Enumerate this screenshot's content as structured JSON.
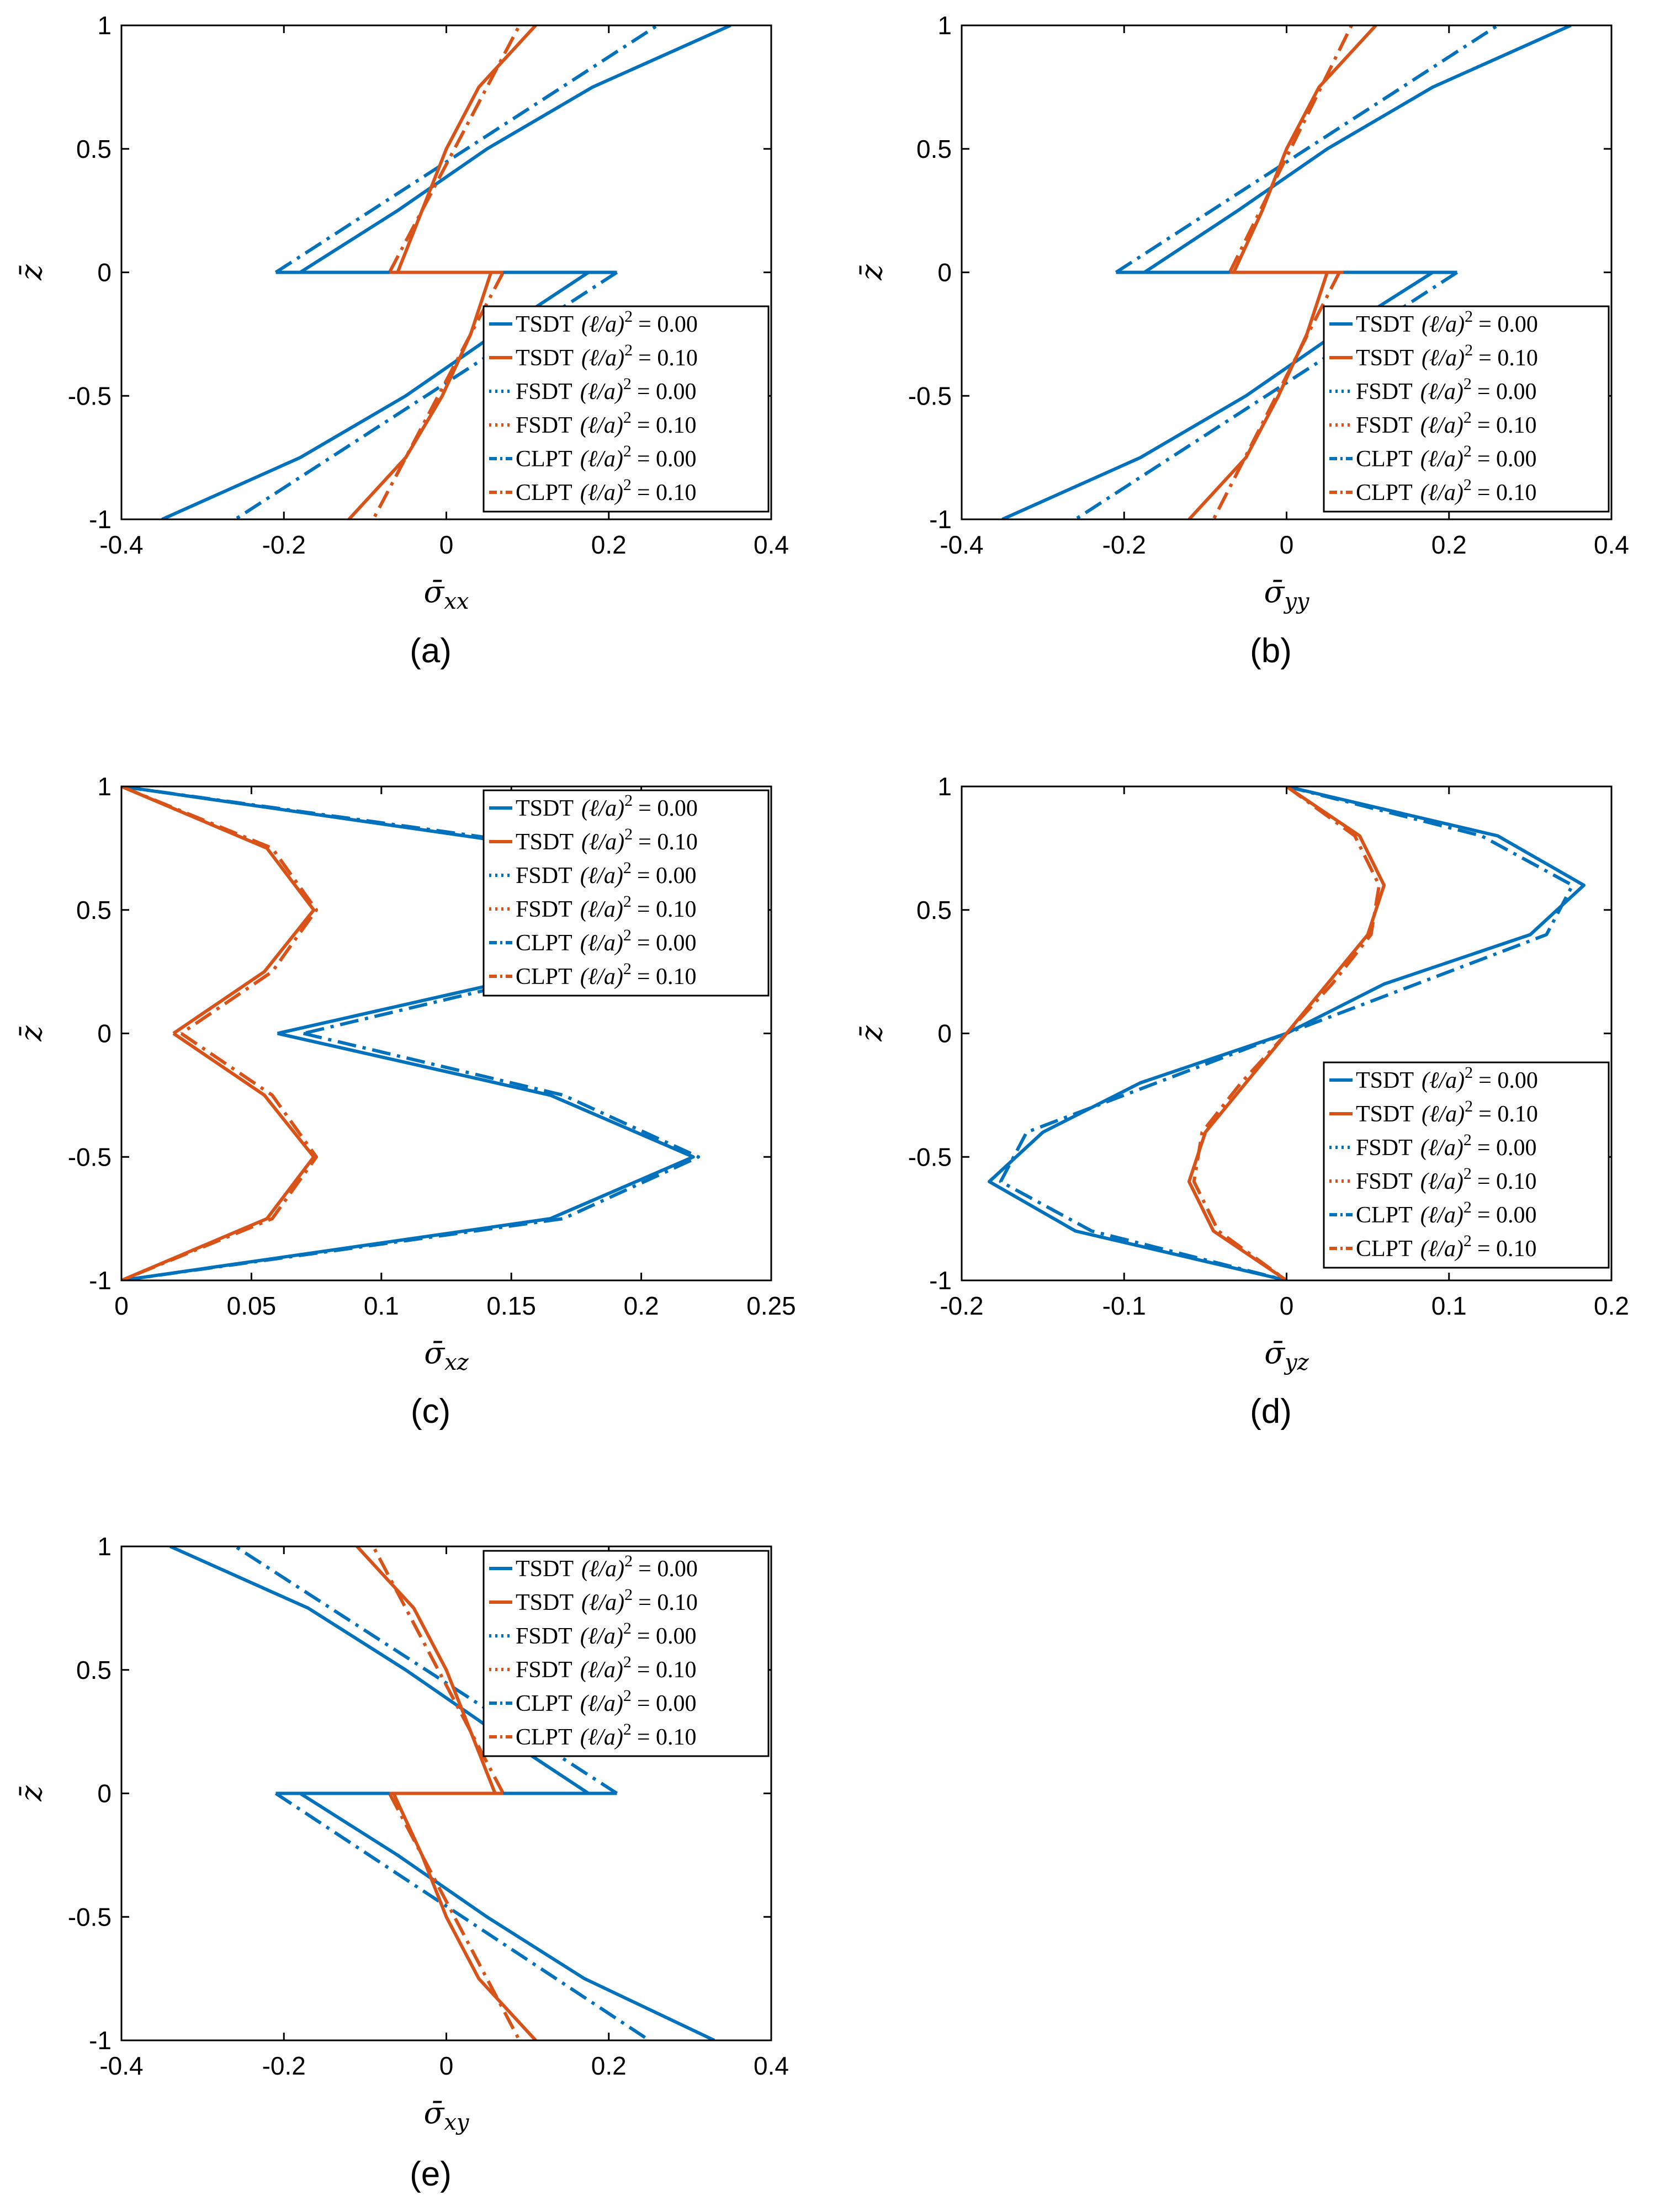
{
  "colors": {
    "blue": "#0072BD",
    "red": "#D95319",
    "axis": "#000000",
    "background": "#ffffff"
  },
  "legend_labels": [
    {
      "method": "TSDT",
      "param": "(ℓ/a)",
      "sup": "2",
      "value": "= 0.00",
      "style": "solid",
      "color": "blue"
    },
    {
      "method": "TSDT",
      "param": "(ℓ/a)",
      "sup": "2",
      "value": "= 0.10",
      "style": "solid",
      "color": "red"
    },
    {
      "method": "FSDT",
      "param": "(ℓ/a)",
      "sup": "2",
      "value": "= 0.00",
      "style": "dotted",
      "color": "blue"
    },
    {
      "method": "FSDT",
      "param": "(ℓ/a)",
      "sup": "2",
      "value": "= 0.10",
      "style": "dotted",
      "color": "red"
    },
    {
      "method": "CLPT",
      "param": "(ℓ/a)",
      "sup": "2",
      "value": "= 0.00",
      "style": "dashdot",
      "color": "blue"
    },
    {
      "method": "CLPT",
      "param": "(ℓ/a)",
      "sup": "2",
      "value": "= 0.10",
      "style": "dashdot",
      "color": "red"
    }
  ],
  "chart_data": [
    {
      "panel": "(a)",
      "type": "line",
      "xlabel": {
        "base": "σ̄",
        "sub": "xx"
      },
      "ylabel": "z̄",
      "xlim": [
        -0.4,
        0.4
      ],
      "ylim": [
        -1,
        1
      ],
      "xticks": [
        "-0.4",
        "-0.2",
        "0",
        "0.2",
        "0.4"
      ],
      "yticks": [
        "-1",
        "-0.5",
        "0",
        "0.5",
        "1"
      ],
      "legend_position": "lower-right",
      "series": [
        {
          "name": "TSDT (ℓ/a)² = 0.00",
          "style": "solid",
          "color": "blue",
          "segments": [
            {
              "z": [
                0,
                0.25,
                0.5,
                0.75,
                1.0
              ],
              "x": [
                -0.18,
                -0.06,
                0.05,
                0.18,
                0.35
              ]
            },
            {
              "z": [
                0,
                -0.25,
                -0.5,
                -0.75,
                -1.0
              ],
              "x": [
                0.175,
                0.06,
                -0.05,
                -0.18,
                -0.35
              ]
            }
          ]
        },
        {
          "name": "CLPT (ℓ/a)² = 0.00",
          "style": "dashdot",
          "color": "blue",
          "segments": [
            {
              "z": [
                0,
                1.0
              ],
              "x": [
                -0.21,
                0.26
              ]
            },
            {
              "z": [
                0,
                -1.0
              ],
              "x": [
                0.21,
                -0.26
              ]
            }
          ]
        },
        {
          "name": "TSDT (ℓ/a)² = 0.10",
          "style": "solid",
          "color": "red",
          "segments": [
            {
              "z": [
                0,
                0.25,
                0.5,
                0.75,
                1.0
              ],
              "x": [
                -0.06,
                -0.03,
                0.0,
                0.04,
                0.11
              ]
            },
            {
              "z": [
                0,
                -0.25,
                -0.5,
                -0.75,
                -1.0
              ],
              "x": [
                0.055,
                0.03,
                -0.005,
                -0.05,
                -0.12
              ]
            }
          ]
        },
        {
          "name": "CLPT (ℓ/a)² = 0.10",
          "style": "dashdot",
          "color": "red",
          "segments": [
            {
              "z": [
                0,
                1.0
              ],
              "x": [
                -0.07,
                0.09
              ]
            },
            {
              "z": [
                0,
                -1.0
              ],
              "x": [
                0.07,
                -0.09
              ]
            }
          ]
        },
        {
          "name": "jumps",
          "style": "solid",
          "color": "blue",
          "segments": [
            {
              "z": [
                0,
                0
              ],
              "x": [
                -0.21,
                0.21
              ]
            }
          ]
        },
        {
          "name": "jumps",
          "style": "solid",
          "color": "red",
          "segments": [
            {
              "z": [
                0,
                0
              ],
              "x": [
                -0.07,
                0.07
              ]
            }
          ]
        }
      ]
    },
    {
      "panel": "(b)",
      "type": "line",
      "xlabel": {
        "base": "σ̄",
        "sub": "yy"
      },
      "ylabel": "z̄",
      "xlim": [
        -0.4,
        0.4
      ],
      "ylim": [
        -1,
        1
      ],
      "xticks": [
        "-0.4",
        "-0.2",
        "0",
        "0.2",
        "0.4"
      ],
      "yticks": [
        "-1",
        "-0.5",
        "0",
        "0.5",
        "1"
      ],
      "legend_position": "lower-right",
      "series": [
        {
          "name": "TSDT (ℓ/a)² = 0.00",
          "style": "solid",
          "color": "blue",
          "segments": [
            {
              "z": [
                0,
                0.25,
                0.5,
                0.75,
                1.0
              ],
              "x": [
                -0.175,
                -0.06,
                0.05,
                0.18,
                0.35
              ]
            },
            {
              "z": [
                0,
                -0.25,
                -0.5,
                -0.75,
                -1.0
              ],
              "x": [
                0.18,
                0.06,
                -0.05,
                -0.18,
                -0.35
              ]
            }
          ]
        },
        {
          "name": "CLPT (ℓ/a)² = 0.00",
          "style": "dashdot",
          "color": "blue",
          "segments": [
            {
              "z": [
                0,
                1.0
              ],
              "x": [
                -0.21,
                0.26
              ]
            },
            {
              "z": [
                0,
                -1.0
              ],
              "x": [
                0.21,
                -0.26
              ]
            }
          ]
        },
        {
          "name": "TSDT (ℓ/a)² = 0.10",
          "style": "solid",
          "color": "red",
          "segments": [
            {
              "z": [
                0,
                0.25,
                0.5,
                0.75,
                1.0
              ],
              "x": [
                -0.065,
                -0.03,
                0.0,
                0.04,
                0.11
              ]
            },
            {
              "z": [
                0,
                -0.25,
                -0.5,
                -0.75,
                -1.0
              ],
              "x": [
                0.05,
                0.025,
                -0.01,
                -0.05,
                -0.12
              ]
            }
          ]
        },
        {
          "name": "CLPT (ℓ/a)² = 0.10",
          "style": "dashdot",
          "color": "red",
          "segments": [
            {
              "z": [
                0,
                1.0
              ],
              "x": [
                -0.07,
                0.08
              ]
            },
            {
              "z": [
                0,
                -1.0
              ],
              "x": [
                0.065,
                -0.09
              ]
            }
          ]
        },
        {
          "name": "jumps",
          "style": "solid",
          "color": "blue",
          "segments": [
            {
              "z": [
                0,
                0
              ],
              "x": [
                -0.21,
                0.21
              ]
            }
          ]
        },
        {
          "name": "jumps",
          "style": "solid",
          "color": "red",
          "segments": [
            {
              "z": [
                0,
                0
              ],
              "x": [
                -0.07,
                0.07
              ]
            }
          ]
        }
      ]
    },
    {
      "panel": "(c)",
      "type": "line",
      "xlabel": {
        "base": "σ̄",
        "sub": "xz"
      },
      "ylabel": "z̄",
      "xlim": [
        0,
        0.25
      ],
      "ylim": [
        -1,
        1
      ],
      "xticks": [
        "0",
        "0.05",
        "0.1",
        "0.15",
        "0.2",
        "0.25"
      ],
      "yticks": [
        "-1",
        "-0.5",
        "0",
        "0.5",
        "1"
      ],
      "legend_position": "top-right",
      "series": [
        {
          "name": "TSDT (ℓ/a)² = 0.00",
          "style": "solid",
          "color": "blue",
          "segments": [
            {
              "z": [
                1.0,
                0.75,
                0.5,
                0.25,
                0.0
              ],
              "x": [
                0.0,
                0.165,
                0.22,
                0.165,
                0.06
              ]
            },
            {
              "z": [
                0.0,
                -0.25,
                -0.5,
                -0.75,
                -1.0
              ],
              "x": [
                0.06,
                0.165,
                0.22,
                0.165,
                0.0
              ]
            }
          ]
        },
        {
          "name": "CLPT (ℓ/a)² = 0.00",
          "style": "dashdot",
          "color": "blue",
          "segments": [
            {
              "z": [
                1.0,
                0.75,
                0.5,
                0.25,
                0.0
              ],
              "x": [
                0.0,
                0.17,
                0.222,
                0.17,
                0.07
              ]
            },
            {
              "z": [
                0.0,
                -0.25,
                -0.5,
                -0.75,
                -1.0
              ],
              "x": [
                0.07,
                0.17,
                0.222,
                0.17,
                0.0
              ]
            }
          ]
        },
        {
          "name": "TSDT (ℓ/a)² = 0.10",
          "style": "solid",
          "color": "red",
          "segments": [
            {
              "z": [
                1.0,
                0.75,
                0.5,
                0.25,
                0.0
              ],
              "x": [
                0.0,
                0.056,
                0.074,
                0.055,
                0.02
              ]
            },
            {
              "z": [
                0.0,
                -0.25,
                -0.5,
                -0.75,
                -1.0
              ],
              "x": [
                0.02,
                0.055,
                0.074,
                0.056,
                0.0
              ]
            }
          ]
        },
        {
          "name": "CLPT (ℓ/a)² = 0.10",
          "style": "dashdot",
          "color": "red",
          "segments": [
            {
              "z": [
                1.0,
                0.75,
                0.5,
                0.25,
                0.0
              ],
              "x": [
                0.0,
                0.058,
                0.075,
                0.058,
                0.023
              ]
            },
            {
              "z": [
                0.0,
                -0.25,
                -0.5,
                -0.75,
                -1.0
              ],
              "x": [
                0.023,
                0.058,
                0.075,
                0.058,
                0.0
              ]
            }
          ]
        }
      ]
    },
    {
      "panel": "(d)",
      "type": "line",
      "xlabel": {
        "base": "σ̄",
        "sub": "yz"
      },
      "ylabel": "z̄",
      "xlim": [
        -0.2,
        0.2
      ],
      "ylim": [
        -1,
        1
      ],
      "xticks": [
        "-0.2",
        "-0.1",
        "0",
        "0.1",
        "0.2"
      ],
      "yticks": [
        "-1",
        "-0.5",
        "0",
        "0.5",
        "1"
      ],
      "legend_position": "lower-right",
      "series": [
        {
          "name": "TSDT (ℓ/a)² = 0.00",
          "style": "solid",
          "color": "blue",
          "segments": [
            {
              "z": [
                1.0,
                0.8,
                0.6,
                0.4,
                0.2,
                0.0,
                -0.2,
                -0.4,
                -0.6,
                -0.8,
                -1.0
              ],
              "x": [
                0.0,
                0.13,
                0.183,
                0.15,
                0.06,
                0.0,
                -0.09,
                -0.15,
                -0.183,
                -0.13,
                0.0
              ]
            }
          ]
        },
        {
          "name": "CLPT (ℓ/a)² = 0.00",
          "style": "dashdot",
          "color": "blue",
          "segments": [
            {
              "z": [
                1.0,
                0.8,
                0.6,
                0.4,
                0.2,
                0.0,
                -0.2,
                -0.4,
                -0.6,
                -0.8,
                -1.0
              ],
              "x": [
                0.0,
                0.12,
                0.176,
                0.16,
                0.08,
                0.0,
                -0.08,
                -0.16,
                -0.176,
                -0.12,
                0.0
              ]
            }
          ]
        },
        {
          "name": "TSDT (ℓ/a)² = 0.10",
          "style": "solid",
          "color": "red",
          "segments": [
            {
              "z": [
                1.0,
                0.8,
                0.6,
                0.4,
                0.2,
                0.0,
                -0.2,
                -0.4,
                -0.6,
                -0.8,
                -1.0
              ],
              "x": [
                0.0,
                0.045,
                0.06,
                0.05,
                0.025,
                0.0,
                -0.025,
                -0.05,
                -0.06,
                -0.045,
                0.0
              ]
            }
          ]
        },
        {
          "name": "CLPT (ℓ/a)² = 0.10",
          "style": "dashdot",
          "color": "red",
          "segments": [
            {
              "z": [
                1.0,
                0.8,
                0.6,
                0.4,
                0.2,
                0.0,
                -0.2,
                -0.4,
                -0.6,
                -0.8,
                -1.0
              ],
              "x": [
                0.0,
                0.042,
                0.057,
                0.052,
                0.028,
                0.0,
                -0.028,
                -0.052,
                -0.057,
                -0.042,
                0.0
              ]
            }
          ]
        }
      ]
    },
    {
      "panel": "(e)",
      "type": "line",
      "xlabel": {
        "base": "σ̄",
        "sub": "xy"
      },
      "ylabel": "z̄",
      "xlim": [
        -0.4,
        0.4
      ],
      "ylim": [
        -1,
        1
      ],
      "xticks": [
        "-0.4",
        "-0.2",
        "0",
        "0.2",
        "0.4"
      ],
      "yticks": [
        "-1",
        "-0.5",
        "0",
        "0.5",
        "1"
      ],
      "legend_position": "top-right",
      "series": [
        {
          "name": "TSDT (ℓ/a)² = 0.00",
          "style": "solid",
          "color": "blue",
          "segments": [
            {
              "z": [
                0,
                0.25,
                0.5,
                0.75,
                1.0
              ],
              "x": [
                0.175,
                0.06,
                -0.05,
                -0.17,
                -0.34
              ]
            },
            {
              "z": [
                0,
                -0.25,
                -0.5,
                -0.75,
                -1.0
              ],
              "x": [
                -0.18,
                -0.06,
                0.05,
                0.17,
                0.33
              ]
            }
          ]
        },
        {
          "name": "CLPT (ℓ/a)² = 0.00",
          "style": "dashdot",
          "color": "blue",
          "segments": [
            {
              "z": [
                0,
                1.0
              ],
              "x": [
                0.21,
                -0.26
              ]
            },
            {
              "z": [
                0,
                -1.0
              ],
              "x": [
                -0.21,
                0.25
              ]
            }
          ]
        },
        {
          "name": "TSDT (ℓ/a)² = 0.10",
          "style": "solid",
          "color": "red",
          "segments": [
            {
              "z": [
                0,
                0.25,
                0.5,
                0.75,
                1.0
              ],
              "x": [
                0.06,
                0.03,
                0.0,
                -0.04,
                -0.11
              ]
            },
            {
              "z": [
                0,
                -0.25,
                -0.5,
                -0.75,
                -1.0
              ],
              "x": [
                -0.065,
                -0.03,
                0.0,
                0.04,
                0.11
              ]
            }
          ]
        },
        {
          "name": "CLPT (ℓ/a)² = 0.10",
          "style": "dashdot",
          "color": "red",
          "segments": [
            {
              "z": [
                0,
                1.0
              ],
              "x": [
                0.07,
                -0.09
              ]
            },
            {
              "z": [
                0,
                -1.0
              ],
              "x": [
                -0.07,
                0.09
              ]
            }
          ]
        },
        {
          "name": "jumps",
          "style": "solid",
          "color": "blue",
          "segments": [
            {
              "z": [
                0,
                0
              ],
              "x": [
                -0.21,
                0.21
              ]
            }
          ]
        },
        {
          "name": "jumps",
          "style": "solid",
          "color": "red",
          "segments": [
            {
              "z": [
                0,
                0
              ],
              "x": [
                -0.07,
                0.07
              ]
            }
          ]
        }
      ]
    }
  ]
}
